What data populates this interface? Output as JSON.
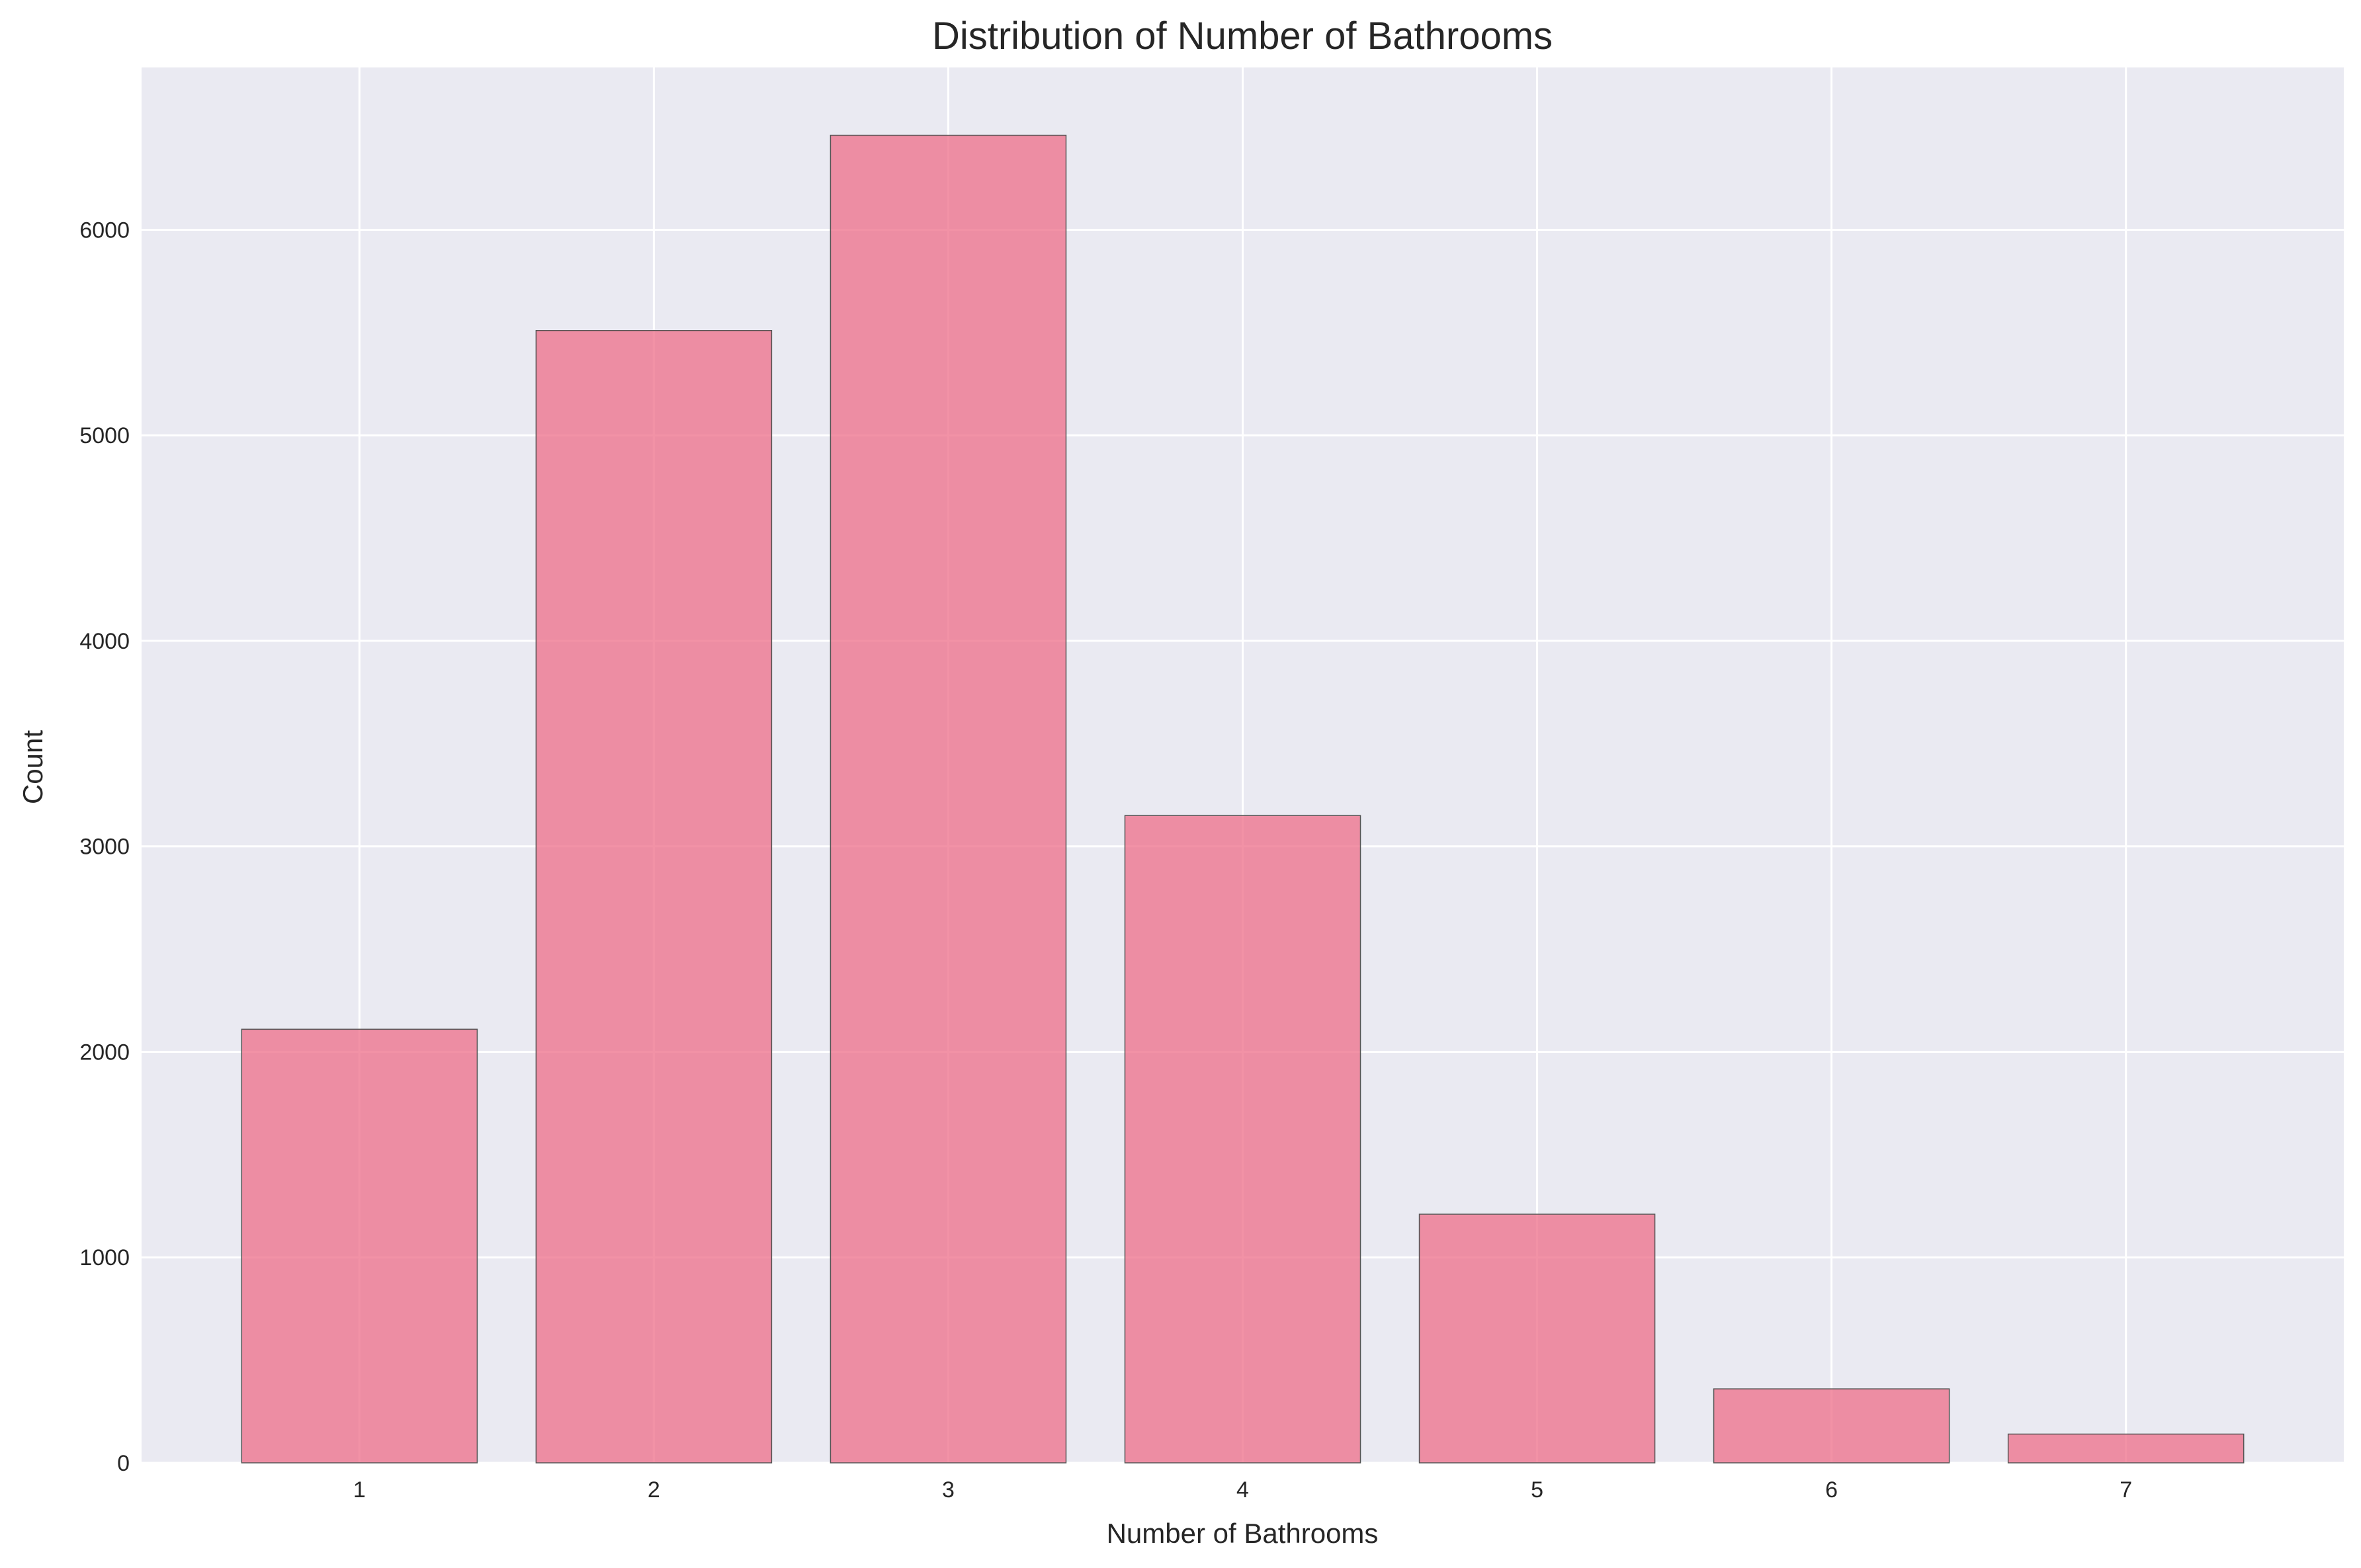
{
  "chart_data": {
    "type": "bar",
    "title": "Distribution of Number of Bathrooms",
    "xlabel": "Number of Bathrooms",
    "ylabel": "Count",
    "categories": [
      "1",
      "2",
      "3",
      "4",
      "5",
      "6",
      "7"
    ],
    "values": [
      2110,
      5510,
      6460,
      3150,
      1210,
      360,
      140
    ],
    "yticks": [
      0,
      1000,
      2000,
      3000,
      4000,
      5000,
      6000
    ],
    "ylim": [
      0,
      6790
    ],
    "xlim": [
      0.26,
      7.74
    ],
    "bar_width": 0.8,
    "grid": true,
    "colors": {
      "bar": "#ee6e88",
      "bar_opacity": 0.75,
      "plot_background": "#eaeaf2"
    }
  }
}
